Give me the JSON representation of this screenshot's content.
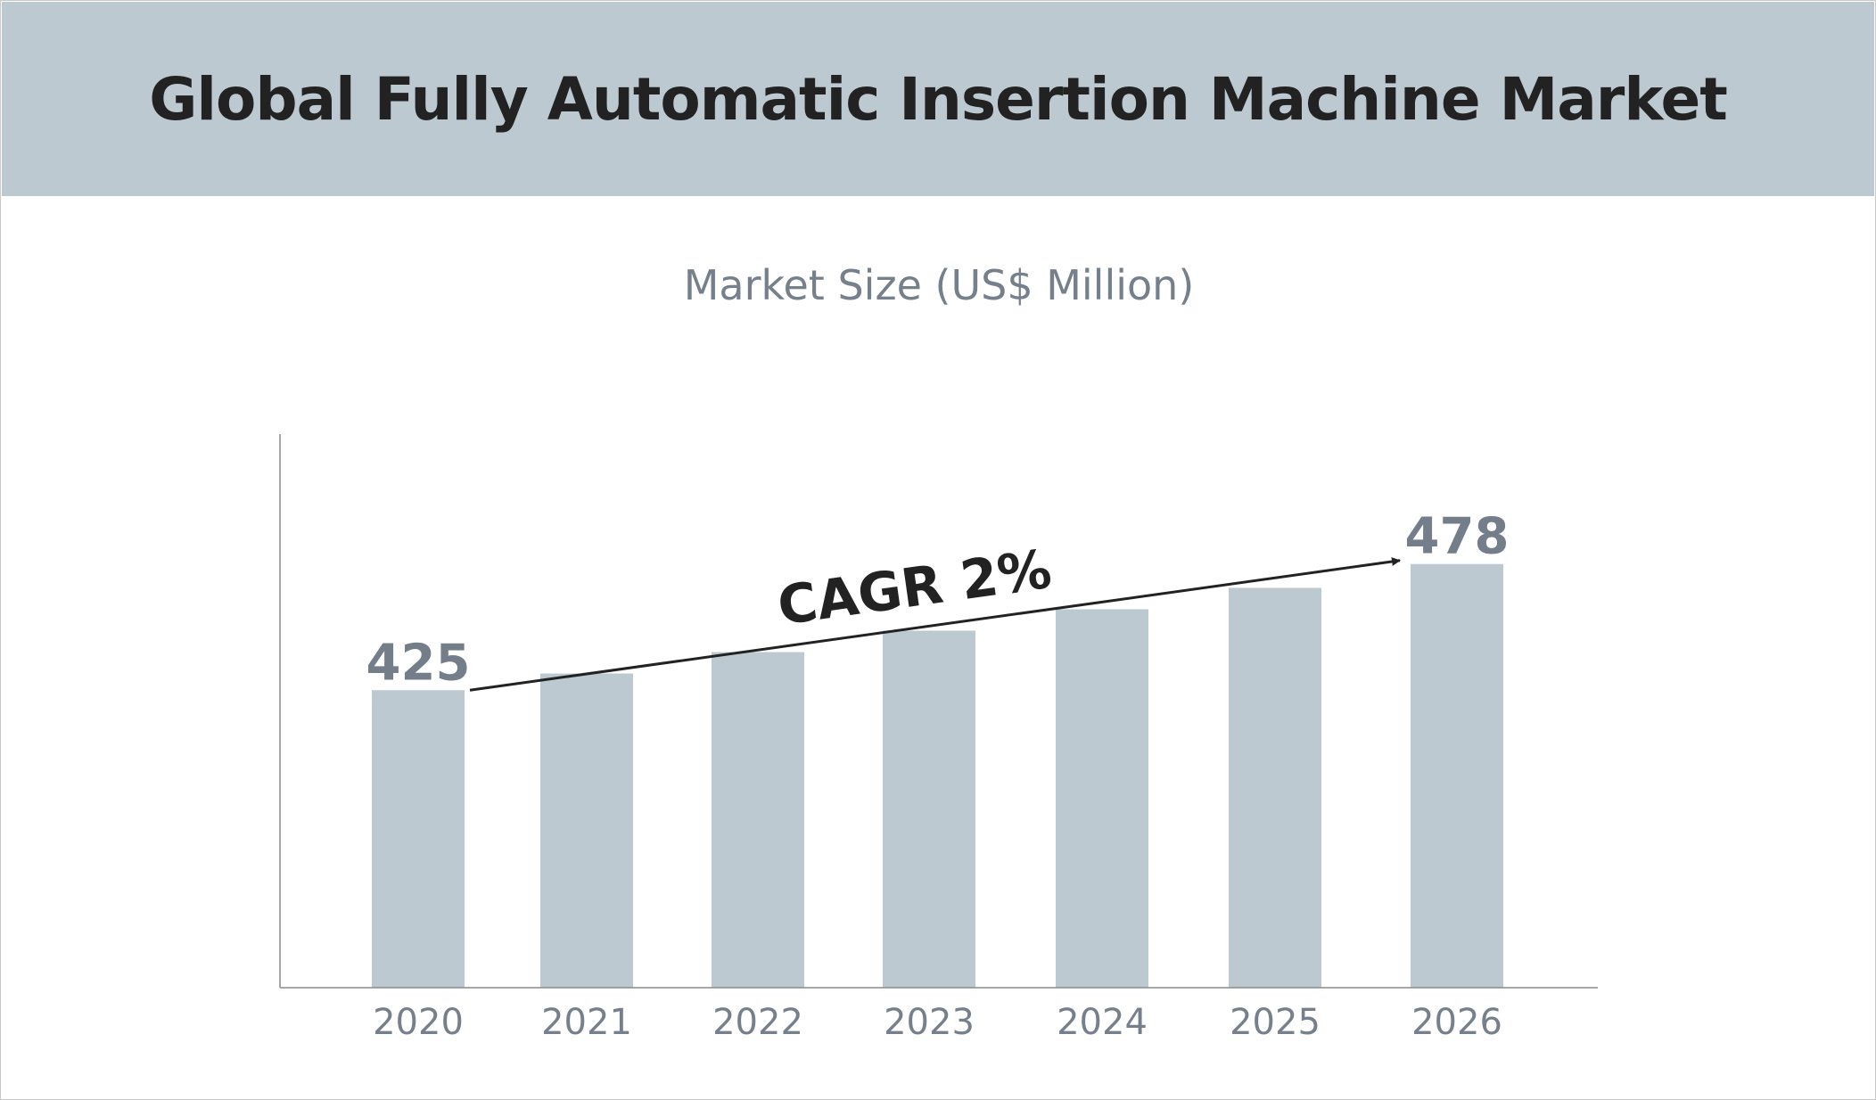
{
  "header": {
    "title": "Global Fully Automatic Insertion Machine Market"
  },
  "colors": {
    "header_bg": "#bcc9d0",
    "bar": "#bcc9d0",
    "title_text": "#222222",
    "muted_text": "#76808c"
  },
  "chart_data": {
    "type": "bar",
    "title": "Global Fully Automatic Insertion Machine Market",
    "subtitle": "Market Size (US$ Million)",
    "xlabel": "",
    "ylabel": "",
    "categories": [
      "2020",
      "2021",
      "2022",
      "2023",
      "2024",
      "2025",
      "2026"
    ],
    "values": [
      425,
      432,
      441,
      450,
      459,
      468,
      478
    ],
    "data_labels": [
      {
        "category": "2020",
        "text": "425"
      },
      {
        "category": "2026",
        "text": "478"
      }
    ],
    "annotation": {
      "text": "CAGR 2%",
      "from_category": "2020",
      "to_category": "2026"
    },
    "ylim": [
      300,
      500
    ],
    "grid": false,
    "legend": "none"
  }
}
